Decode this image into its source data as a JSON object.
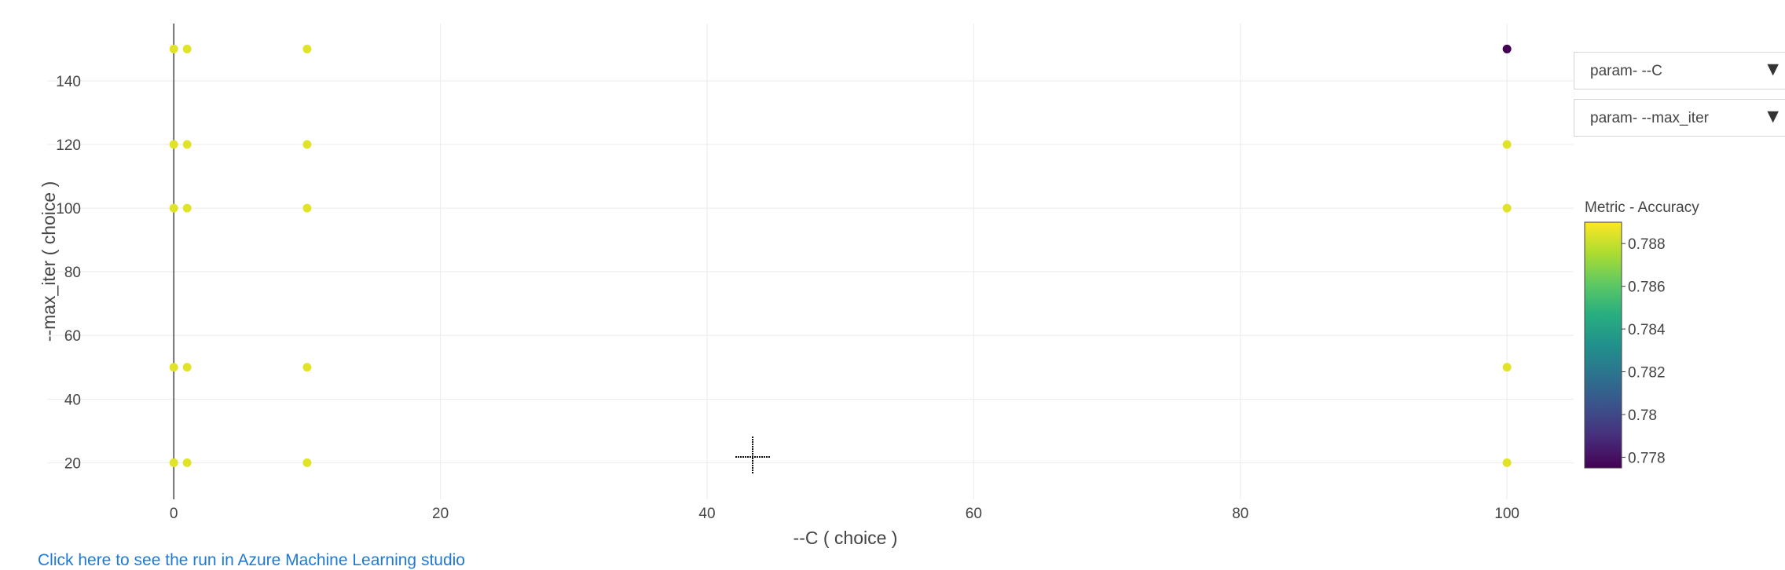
{
  "chart_data": {
    "type": "scatter",
    "xlabel": "--C ( choice )",
    "ylabel": "--max_iter ( choice )",
    "xlim": [
      -9.5,
      105
    ],
    "ylim": [
      8.5,
      158
    ],
    "x_ticks": [
      0,
      20,
      40,
      60,
      80,
      100
    ],
    "y_ticks": [
      20,
      40,
      60,
      80,
      100,
      120,
      140
    ],
    "grid": true,
    "points": [
      {
        "x": 0,
        "y": 150,
        "accuracy": 0.7885
      },
      {
        "x": 1,
        "y": 150,
        "accuracy": 0.7885
      },
      {
        "x": 10,
        "y": 150,
        "accuracy": 0.7885
      },
      {
        "x": 100,
        "y": 150,
        "accuracy": 0.7775
      },
      {
        "x": 0,
        "y": 120,
        "accuracy": 0.7885
      },
      {
        "x": 1,
        "y": 120,
        "accuracy": 0.7885
      },
      {
        "x": 10,
        "y": 120,
        "accuracy": 0.7885
      },
      {
        "x": 100,
        "y": 120,
        "accuracy": 0.7885
      },
      {
        "x": 0,
        "y": 100,
        "accuracy": 0.7885
      },
      {
        "x": 1,
        "y": 100,
        "accuracy": 0.7885
      },
      {
        "x": 10,
        "y": 100,
        "accuracy": 0.7885
      },
      {
        "x": 100,
        "y": 100,
        "accuracy": 0.7885
      },
      {
        "x": 0,
        "y": 50,
        "accuracy": 0.7885
      },
      {
        "x": 1,
        "y": 50,
        "accuracy": 0.7885
      },
      {
        "x": 10,
        "y": 50,
        "accuracy": 0.7885
      },
      {
        "x": 100,
        "y": 50,
        "accuracy": 0.7885
      },
      {
        "x": 0,
        "y": 20,
        "accuracy": 0.7885
      },
      {
        "x": 1,
        "y": 20,
        "accuracy": 0.7885
      },
      {
        "x": 10,
        "y": 20,
        "accuracy": 0.7885
      },
      {
        "x": 100,
        "y": 20,
        "accuracy": 0.7885
      }
    ],
    "colorbar": {
      "title": "Metric - Accuracy",
      "range": [
        0.7775,
        0.789
      ],
      "ticks": [
        0.788,
        0.786,
        0.784,
        0.782,
        0.78,
        0.778
      ],
      "tick_labels": [
        "0.788",
        "0.786",
        "0.784",
        "0.782",
        "0.78",
        "0.778"
      ],
      "colorscale": [
        "#440154",
        "#472d7b",
        "#3b528b",
        "#2c728e",
        "#21918c",
        "#28ae80",
        "#5ec962",
        "#addc30",
        "#fde725"
      ]
    }
  },
  "controls": {
    "x_dropdown": {
      "label": "param- --C"
    },
    "y_dropdown": {
      "label": "param- --max_iter"
    }
  },
  "footer": {
    "link_text": "Click here to see the run in Azure Machine Learning studio"
  }
}
